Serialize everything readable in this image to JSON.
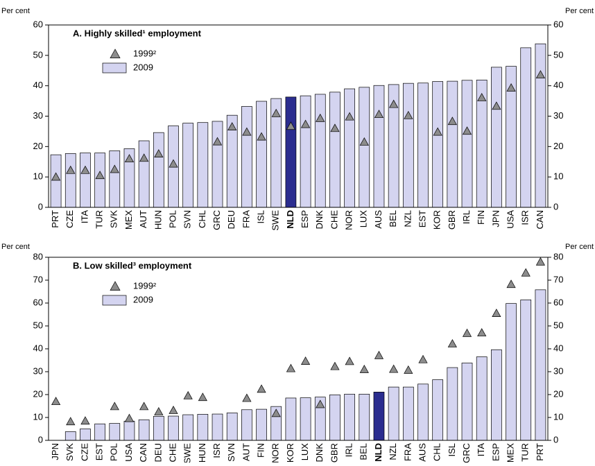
{
  "chart_data": [
    {
      "type": "bar",
      "title": "A. Highly skilled¹ employment",
      "y_label": "Per cent",
      "y2_label": "Per cent",
      "categories": [
        "PRT",
        "CZE",
        "ITA",
        "TUR",
        "SVK",
        "MEX",
        "AUT",
        "HUN",
        "POL",
        "SVN",
        "CHL",
        "GRC",
        "DEU",
        "FRA",
        "ISL",
        "SWE",
        "NLD",
        "ESP",
        "DNK",
        "CHE",
        "NOR",
        "LUX",
        "AUS",
        "BEL",
        "NZL",
        "EST",
        "KOR",
        "GBR",
        "IRL",
        "FIN",
        "JPN",
        "USA",
        "ISR",
        "CAN"
      ],
      "series": [
        {
          "name": "1999²",
          "mark": "triangle",
          "color": "#8c8c8c",
          "values": [
            10,
            12.2,
            12.2,
            10.5,
            12.5,
            16,
            16.2,
            17.6,
            14.3,
            null,
            null,
            21.6,
            26.5,
            24.8,
            23.2,
            30.9,
            26.7,
            27.3,
            29.3,
            26,
            29.8,
            21.5,
            30.6,
            33.9,
            30.2,
            null,
            24.8,
            28.3,
            25.1,
            36.1,
            33.3,
            39.3,
            null,
            43.6
          ]
        },
        {
          "name": "2009",
          "mark": "bar",
          "color": "#d4d4f0",
          "values": [
            17.3,
            17.7,
            17.9,
            17.9,
            18.6,
            19.3,
            21.9,
            24.6,
            26.8,
            27.7,
            27.9,
            28.3,
            30.3,
            33.2,
            34.9,
            35.8,
            36.3,
            36.7,
            37.2,
            37.9,
            39,
            39.5,
            40.1,
            40.4,
            40.8,
            40.9,
            41.4,
            41.5,
            41.8,
            41.9,
            46.1,
            46.4,
            52.5,
            53.8
          ]
        }
      ],
      "highlight": "NLD",
      "highlight_color": "#2b2d8f",
      "ylim": [
        0,
        60
      ],
      "yticks": [
        0,
        10,
        20,
        30,
        40,
        50,
        60
      ]
    },
    {
      "type": "bar",
      "title": "B. Low skilled³ employment",
      "y_label": "Per cent",
      "y2_label": "Per cent",
      "categories": [
        "JPN",
        "SVK",
        "CZE",
        "EST",
        "POL",
        "USA",
        "CAN",
        "DEU",
        "CHE",
        "SWE",
        "HUN",
        "ISR",
        "SVN",
        "AUT",
        "FIN",
        "NOR",
        "KOR",
        "LUX",
        "DNK",
        "GBR",
        "IRL",
        "BEL",
        "NLD",
        "NZL",
        "FRA",
        "AUS",
        "CHL",
        "ISL",
        "GRC",
        "ITA",
        "ESP",
        "MEX",
        "TUR",
        "PRT"
      ],
      "series": [
        {
          "name": "1999²",
          "mark": "triangle",
          "color": "#8c8c8c",
          "values": [
            17,
            8.2,
            8.5,
            null,
            14.8,
            9.6,
            14.8,
            12.5,
            13.1,
            19.5,
            18.8,
            null,
            null,
            18.4,
            22.4,
            11.8,
            31.4,
            34.6,
            15.7,
            32.3,
            34.5,
            31,
            37.1,
            31.1,
            30.7,
            35.3,
            null,
            42.2,
            46.8,
            47,
            55.5,
            68.2,
            73.2,
            78
          ]
        },
        {
          "name": "2009",
          "mark": "bar",
          "color": "#d4d4f0",
          "values": [
            null,
            3.8,
            5,
            7.2,
            7.4,
            8.4,
            9,
            10.5,
            10.6,
            11.2,
            11.4,
            11.5,
            12,
            13.4,
            13.6,
            14.8,
            18.5,
            18.6,
            18.9,
            19.9,
            20.2,
            20.2,
            21.1,
            23.3,
            23.3,
            24.6,
            26.5,
            31.8,
            33.8,
            36.5,
            39.6,
            59.8,
            61.4,
            65.8
          ]
        }
      ],
      "highlight": "NLD",
      "highlight_color": "#2b2d8f",
      "ylim": [
        0,
        80
      ],
      "yticks": [
        0,
        10,
        20,
        30,
        40,
        50,
        60,
        70,
        80
      ]
    }
  ]
}
